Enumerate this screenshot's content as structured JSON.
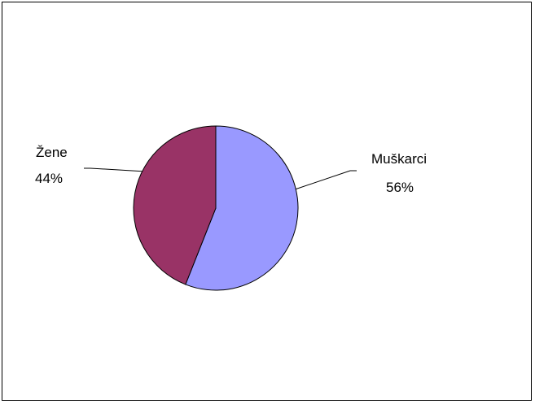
{
  "chart_data": {
    "type": "pie",
    "title": "",
    "slices": [
      {
        "label": "Muškarci",
        "percent_label": "56%",
        "value": 56,
        "color": "#9999ff"
      },
      {
        "label": "Žene",
        "percent_label": "44%",
        "value": 44,
        "color": "#993366"
      }
    ],
    "start_angle_deg": 0,
    "direction": "clockwise",
    "legend": "none",
    "data_labels": "outside with leader lines"
  }
}
